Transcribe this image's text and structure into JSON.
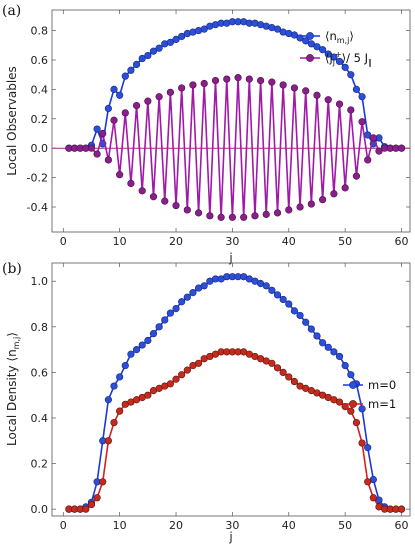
{
  "colors": {
    "blue": "#1a3ad6",
    "blue_marker": "#2a4fd8",
    "purple": "#a01aa8",
    "purple_marker": "#8a1f8c",
    "red": "#d32020",
    "red_marker": "#c52a1d",
    "zero_line": "#9a2a8a"
  },
  "panel_a_label": "(a)",
  "panel_b_label": "(b)",
  "chart_data": [
    {
      "type": "line",
      "xlabel": "j",
      "ylabel": "Local Observables",
      "xlim": [
        -2,
        61.5
      ],
      "ylim": [
        -0.57,
        0.94
      ],
      "x_ticks": [
        0,
        10,
        20,
        30,
        40,
        50,
        60
      ],
      "y_ticks": [
        -0.4,
        -0.2,
        0.0,
        0.2,
        0.4,
        0.6,
        0.8
      ],
      "y_tick_labels": [
        "-0.4",
        "-0.2",
        "0.0",
        "0.2",
        "0.4",
        "0.6",
        "0.8"
      ],
      "legend_position": "top-right",
      "x": [
        1,
        2,
        3,
        4,
        5,
        6,
        7,
        8,
        9,
        10,
        11,
        12,
        13,
        14,
        15,
        16,
        17,
        18,
        19,
        20,
        21,
        22,
        23,
        24,
        25,
        26,
        27,
        28,
        29,
        30,
        31,
        32,
        33,
        34,
        35,
        36,
        37,
        38,
        39,
        40,
        41,
        42,
        43,
        44,
        45,
        46,
        47,
        48,
        49,
        50,
        51,
        52,
        53,
        54,
        55,
        56,
        57,
        58,
        59,
        60
      ],
      "series": [
        {
          "name": "⟨n_{m,j}⟩",
          "color_key": "blue",
          "values": [
            0.0,
            0.0,
            0.0,
            0.0,
            0.02,
            0.13,
            0.03,
            0.27,
            0.4,
            0.36,
            0.49,
            0.53,
            0.57,
            0.61,
            0.63,
            0.66,
            0.68,
            0.71,
            0.72,
            0.74,
            0.76,
            0.78,
            0.79,
            0.8,
            0.81,
            0.83,
            0.84,
            0.85,
            0.85,
            0.86,
            0.86,
            0.86,
            0.85,
            0.85,
            0.84,
            0.83,
            0.82,
            0.81,
            0.79,
            0.78,
            0.77,
            0.75,
            0.73,
            0.71,
            0.69,
            0.67,
            0.64,
            0.62,
            0.59,
            0.55,
            0.5,
            0.4,
            0.35,
            0.09,
            0.03,
            0.07,
            0.01,
            0.0,
            0.0,
            0.0
          ]
        },
        {
          "name": "⟨j_j^+⟩/5 J_∥",
          "color_key": "purple",
          "values": [
            0.0,
            0.0,
            0.0,
            0.0,
            0.0,
            -0.04,
            0.1,
            -0.08,
            0.19,
            -0.18,
            0.24,
            -0.24,
            0.29,
            -0.29,
            0.32,
            -0.33,
            0.35,
            -0.36,
            0.38,
            -0.39,
            0.41,
            -0.42,
            0.43,
            -0.44,
            0.44,
            -0.46,
            0.46,
            -0.47,
            0.47,
            -0.47,
            0.48,
            -0.47,
            0.47,
            -0.46,
            0.46,
            -0.45,
            0.45,
            -0.44,
            0.43,
            -0.42,
            0.41,
            -0.4,
            0.39,
            -0.38,
            0.36,
            -0.35,
            0.33,
            -0.31,
            0.3,
            -0.27,
            0.26,
            -0.19,
            0.18,
            -0.08,
            0.07,
            -0.02,
            0.0,
            0.0,
            0.0,
            0.0
          ]
        }
      ]
    },
    {
      "type": "line",
      "xlabel": "j",
      "ylabel": "Local Density ⟨n_{m,j}⟩",
      "xlim": [
        -2,
        61.5
      ],
      "ylim": [
        -0.03,
        1.08
      ],
      "x_ticks": [
        0,
        10,
        20,
        30,
        40,
        50,
        60
      ],
      "y_ticks": [
        0.0,
        0.2,
        0.4,
        0.6,
        0.8,
        1.0
      ],
      "y_tick_labels": [
        "0.0",
        "0.2",
        "0.4",
        "0.6",
        "0.8",
        "1.0"
      ],
      "legend_position": "right",
      "x": [
        1,
        2,
        3,
        4,
        5,
        6,
        7,
        8,
        9,
        10,
        11,
        12,
        13,
        14,
        15,
        16,
        17,
        18,
        19,
        20,
        21,
        22,
        23,
        24,
        25,
        26,
        27,
        28,
        29,
        30,
        31,
        32,
        33,
        34,
        35,
        36,
        37,
        38,
        39,
        40,
        41,
        42,
        43,
        44,
        45,
        46,
        47,
        48,
        49,
        50,
        51,
        52,
        53,
        54,
        55,
        56,
        57,
        58,
        59,
        60
      ],
      "series": [
        {
          "name": "m=0",
          "color_key": "blue",
          "values": [
            0.0,
            0.0,
            0.0,
            0.01,
            0.03,
            0.12,
            0.3,
            0.48,
            0.54,
            0.58,
            0.63,
            0.68,
            0.7,
            0.72,
            0.74,
            0.77,
            0.8,
            0.83,
            0.86,
            0.88,
            0.91,
            0.93,
            0.95,
            0.97,
            0.98,
            1.0,
            1.01,
            1.01,
            1.02,
            1.02,
            1.02,
            1.02,
            1.01,
            1.0,
            0.99,
            0.98,
            0.96,
            0.94,
            0.92,
            0.9,
            0.87,
            0.85,
            0.82,
            0.79,
            0.76,
            0.73,
            0.71,
            0.69,
            0.67,
            0.63,
            0.59,
            0.55,
            0.44,
            0.27,
            0.13,
            0.04,
            0.01,
            0.0,
            0.0,
            0.0
          ]
        },
        {
          "name": "m=1",
          "color_key": "red",
          "values": [
            0.0,
            0.0,
            0.0,
            0.0,
            0.02,
            0.05,
            0.12,
            0.3,
            0.38,
            0.43,
            0.46,
            0.47,
            0.48,
            0.49,
            0.5,
            0.52,
            0.53,
            0.54,
            0.55,
            0.57,
            0.59,
            0.61,
            0.63,
            0.64,
            0.66,
            0.67,
            0.68,
            0.69,
            0.69,
            0.69,
            0.69,
            0.69,
            0.68,
            0.67,
            0.66,
            0.65,
            0.64,
            0.62,
            0.6,
            0.58,
            0.56,
            0.54,
            0.53,
            0.52,
            0.51,
            0.5,
            0.49,
            0.48,
            0.47,
            0.45,
            0.43,
            0.38,
            0.29,
            0.12,
            0.05,
            0.01,
            0.0,
            0.0,
            0.0,
            0.0
          ]
        }
      ]
    }
  ]
}
